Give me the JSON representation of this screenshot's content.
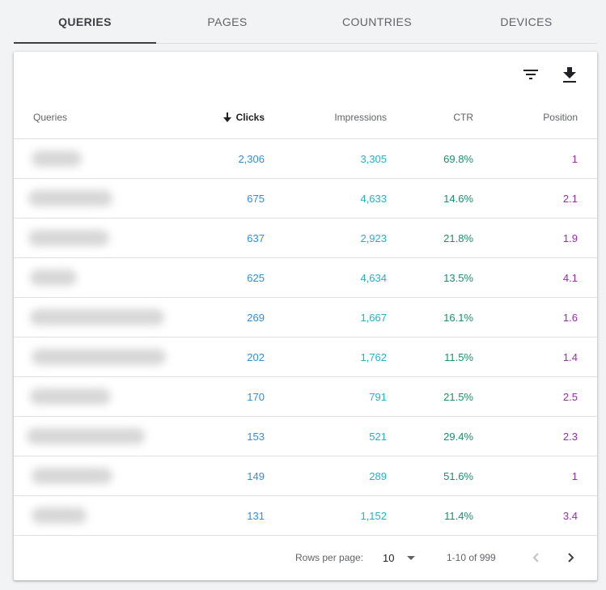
{
  "tabs": [
    {
      "label": "QUERIES",
      "active": true
    },
    {
      "label": "PAGES",
      "active": false
    },
    {
      "label": "COUNTRIES",
      "active": false
    },
    {
      "label": "DEVICES",
      "active": false
    }
  ],
  "toolbar": {
    "filter_icon": "filter-icon",
    "download_icon": "download-icon"
  },
  "table": {
    "headers": {
      "queries": "Queries",
      "clicks": "Clicks",
      "impressions": "Impressions",
      "ctr": "CTR",
      "position": "Position"
    },
    "sort_icon": "arrow-down-icon",
    "rows": [
      {
        "clicks": "2,306",
        "impressions": "3,305",
        "ctr": "69.8%",
        "position": "1"
      },
      {
        "clicks": "675",
        "impressions": "4,633",
        "ctr": "14.6%",
        "position": "2.1"
      },
      {
        "clicks": "637",
        "impressions": "2,923",
        "ctr": "21.8%",
        "position": "1.9"
      },
      {
        "clicks": "625",
        "impressions": "4,634",
        "ctr": "13.5%",
        "position": "4.1"
      },
      {
        "clicks": "269",
        "impressions": "1,667",
        "ctr": "16.1%",
        "position": "1.6"
      },
      {
        "clicks": "202",
        "impressions": "1,762",
        "ctr": "11.5%",
        "position": "1.4"
      },
      {
        "clicks": "170",
        "impressions": "791",
        "ctr": "21.5%",
        "position": "2.5"
      },
      {
        "clicks": "153",
        "impressions": "521",
        "ctr": "29.4%",
        "position": "2.3"
      },
      {
        "clicks": "149",
        "impressions": "289",
        "ctr": "51.6%",
        "position": "1"
      },
      {
        "clicks": "131",
        "impressions": "1,152",
        "ctr": "11.4%",
        "position": "3.4"
      }
    ]
  },
  "pagination": {
    "rows_per_page_label": "Rows per page:",
    "rows_per_page_value": "10",
    "range": "1-10 of 999"
  },
  "colors": {
    "clicks": "#2d8ee0",
    "impressions": "#1fb3c9",
    "ctr": "#12936b",
    "position": "#9c27b0"
  }
}
